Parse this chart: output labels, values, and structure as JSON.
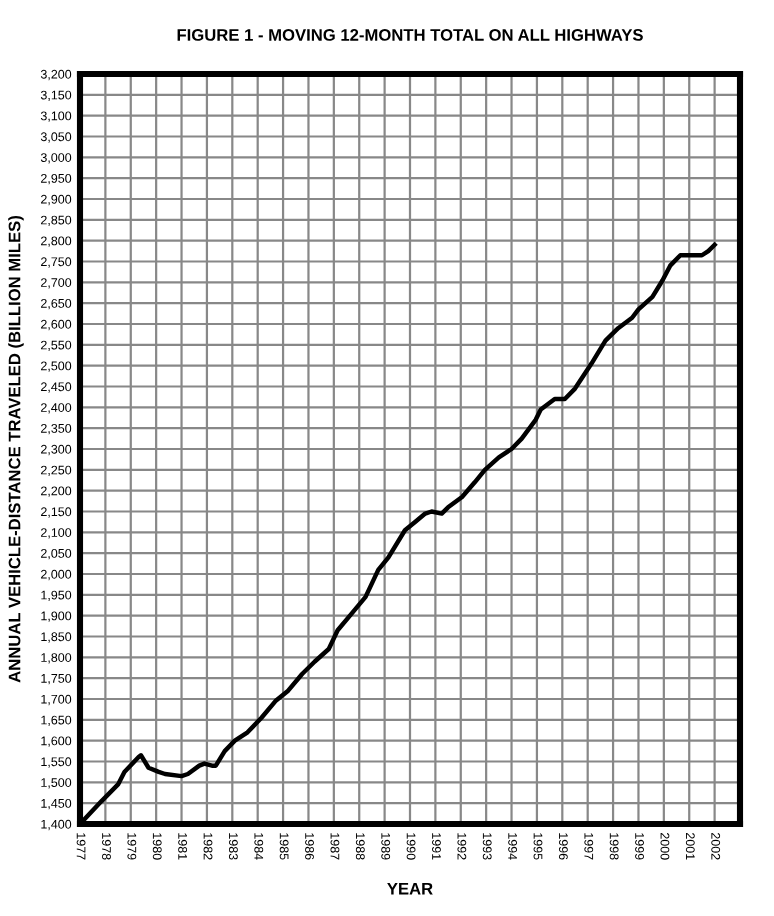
{
  "chart_data": {
    "type": "line",
    "title": "FIGURE 1 - MOVING 12-MONTH TOTAL ON ALL HIGHWAYS",
    "xlabel": "YEAR",
    "ylabel": "ANNUAL VEHICLE-DISTANCE TRAVELED (BILLION MILES)",
    "x": [
      1977.0,
      1977.85,
      1978.5,
      1978.75,
      1979.3,
      1979.4,
      1979.7,
      1980.1,
      1980.35,
      1981.0,
      1981.25,
      1981.7,
      1981.9,
      1982.2,
      1982.35,
      1982.7,
      1983.1,
      1983.6,
      1984.15,
      1984.7,
      1985.2,
      1985.75,
      1986.25,
      1986.8,
      1987.15,
      1987.7,
      1988.25,
      1988.75,
      1989.15,
      1989.8,
      1990.2,
      1990.6,
      1990.85,
      1991.25,
      1991.5,
      1992.05,
      1992.55,
      1992.95,
      1993.5,
      1994.0,
      1994.4,
      1994.95,
      1995.15,
      1995.7,
      1996.1,
      1996.5,
      1997.15,
      1997.7,
      1998.2,
      1998.75,
      1999.0,
      1999.55,
      1999.95,
      2000.25,
      2000.65,
      2001.5,
      2001.75,
      2002.0
    ],
    "series": [
      {
        "color": "#000000",
        "values": [
          1400,
          1455,
          1495,
          1525,
          1560,
          1565,
          1535,
          1525,
          1520,
          1515,
          1520,
          1540,
          1545,
          1540,
          1540,
          1575,
          1600,
          1620,
          1655,
          1695,
          1720,
          1760,
          1790,
          1820,
          1865,
          1905,
          1945,
          2010,
          2040,
          2105,
          2125,
          2145,
          2150,
          2145,
          2160,
          2185,
          2220,
          2250,
          2280,
          2300,
          2325,
          2370,
          2395,
          2420,
          2420,
          2445,
          2505,
          2560,
          2590,
          2615,
          2635,
          2665,
          2705,
          2740,
          2765,
          2765,
          2775,
          2790
        ]
      }
    ],
    "xlim": [
      1977,
      2003
    ],
    "xticks": [
      1977,
      1978,
      1979,
      1980,
      1981,
      1982,
      1983,
      1984,
      1985,
      1986,
      1987,
      1988,
      1989,
      1990,
      1991,
      1992,
      1993,
      1994,
      1995,
      1996,
      1997,
      1998,
      1999,
      2000,
      2001,
      2002
    ],
    "ylim": [
      1400,
      3200
    ],
    "yticks": [
      {
        "value": 1400,
        "label": "1,400"
      },
      {
        "value": 1450,
        "label": "1,450"
      },
      {
        "value": 1500,
        "label": "1,500"
      },
      {
        "value": 1550,
        "label": "1,550"
      },
      {
        "value": 1600,
        "label": "1,600"
      },
      {
        "value": 1650,
        "label": "1,650"
      },
      {
        "value": 1700,
        "label": "1,700"
      },
      {
        "value": 1750,
        "label": "1,750"
      },
      {
        "value": 1800,
        "label": "1,800"
      },
      {
        "value": 1850,
        "label": "1,850"
      },
      {
        "value": 1900,
        "label": "1,900"
      },
      {
        "value": 1950,
        "label": "1,950"
      },
      {
        "value": 2000,
        "label": "2,000"
      },
      {
        "value": 2050,
        "label": "2,050"
      },
      {
        "value": 2100,
        "label": "2,100"
      },
      {
        "value": 2150,
        "label": "2,150"
      },
      {
        "value": 2200,
        "label": "2,200"
      },
      {
        "value": 2250,
        "label": "2,250"
      },
      {
        "value": 2300,
        "label": "2,300"
      },
      {
        "value": 2350,
        "label": "2,350"
      },
      {
        "value": 2400,
        "label": "2,400"
      },
      {
        "value": 2450,
        "label": "2,450"
      },
      {
        "value": 2500,
        "label": "2,500"
      },
      {
        "value": 2550,
        "label": "2,550"
      },
      {
        "value": 2600,
        "label": "2,600"
      },
      {
        "value": 2650,
        "label": "2,650"
      },
      {
        "value": 2700,
        "label": "2,700"
      },
      {
        "value": 2750,
        "label": "2,750"
      },
      {
        "value": 2800,
        "label": "2,800"
      },
      {
        "value": 2850,
        "label": "2,850"
      },
      {
        "value": 2900,
        "label": "2,900"
      },
      {
        "value": 2950,
        "label": "2,950"
      },
      {
        "value": 3000,
        "label": "3,000"
      },
      {
        "value": 3050,
        "label": "3,050"
      },
      {
        "value": 3100,
        "label": "3,100"
      },
      {
        "value": 3150,
        "label": "3,150"
      },
      {
        "value": 3200,
        "label": "3,200"
      }
    ],
    "grid": true,
    "line_style": "solid",
    "marker": "none"
  }
}
